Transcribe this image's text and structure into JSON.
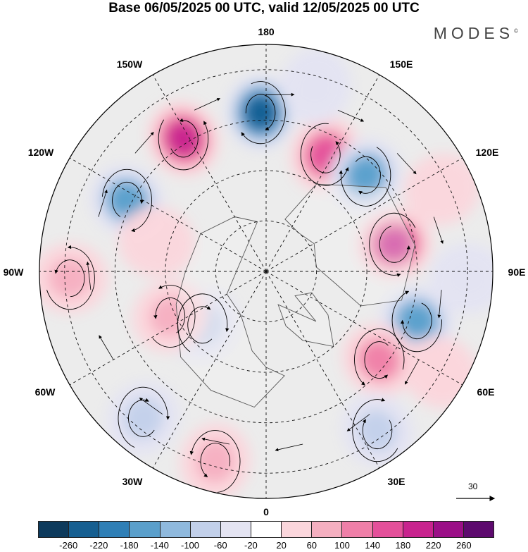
{
  "title": "Base 06/05/2025 00 UTC, valid 12/05/2025 00 UTC",
  "brand": "MODES",
  "brand_mark": "©",
  "longitude_labels": {
    "top": "180",
    "top_left": "150W",
    "top_right": "150E",
    "upper_left": "120W",
    "upper_right": "120E",
    "left": "90W",
    "right": "90E",
    "lower_left": "60W",
    "lower_right": "60E",
    "bottom_left": "30W",
    "bottom_right": "30E",
    "bottom": "0"
  },
  "reference_vector": {
    "label": "30",
    "icon": "right-arrow-icon"
  },
  "colorbar": {
    "colors": [
      "#0d3a5c",
      "#165f91",
      "#2f7fb6",
      "#5a9fcb",
      "#8fb9dd",
      "#c2d0ea",
      "#e4e4f2",
      "#ffffff",
      "#fbd6dc",
      "#f5afc0",
      "#ef7fa8",
      "#e4509a",
      "#c8238e",
      "#9b0f87",
      "#5d0a6e"
    ],
    "labels": [
      "-260",
      "-220",
      "-180",
      "-140",
      "-100",
      "-60",
      "-20",
      "20",
      "60",
      "100",
      "140",
      "180",
      "220",
      "260"
    ]
  },
  "anomaly_centers": [
    {
      "lon": 178,
      "colat_deg": 63,
      "value": -260
    },
    {
      "lon": 148,
      "colat_deg": 62,
      "value": 220
    },
    {
      "lon": 117,
      "colat_deg": 62,
      "value": -200
    },
    {
      "lon": -153,
      "colat_deg": 52,
      "value": 200
    },
    {
      "lon": -134,
      "colat_deg": 55,
      "value": -180
    },
    {
      "lon": -102,
      "colat_deg": 52,
      "value": 230
    },
    {
      "lon": -72,
      "colat_deg": 63,
      "value": -190
    },
    {
      "lon": -52,
      "colat_deg": 57,
      "value": 150
    },
    {
      "lon": -35,
      "colat_deg": 77,
      "value": -130
    },
    {
      "lon": 15,
      "colat_deg": 78,
      "value": 120
    },
    {
      "lon": 50,
      "colat_deg": 33,
      "value": -130
    },
    {
      "lon": 40,
      "colat_deg": 76,
      "value": -110
    },
    {
      "lon": 65,
      "colat_deg": 42,
      "value": 130
    },
    {
      "lon": 88,
      "colat_deg": 78,
      "value": 100
    },
    {
      "lon": 105,
      "colat_deg": 45,
      "value": 40
    },
    {
      "lon": -165,
      "colat_deg": 76,
      "value": -60
    },
    {
      "lon": -115,
      "colat_deg": 77,
      "value": 50
    },
    {
      "lon": -88,
      "colat_deg": 80,
      "value": -60
    },
    {
      "lon": -60,
      "colat_deg": 80,
      "value": 70
    }
  ]
}
